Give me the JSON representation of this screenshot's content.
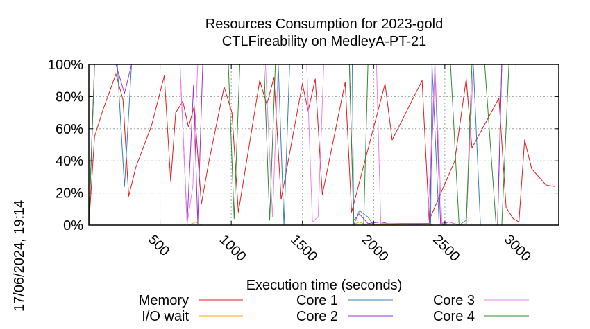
{
  "chart_data": {
    "type": "line",
    "title": "Resources Consumption for 2023-gold",
    "subtitle": "CTLFireability on MedleyA-PT-21",
    "xlabel": "Execution time (seconds)",
    "ylabel": "",
    "timestamp": "17/06/2024, 19:14",
    "xlim": [
      0,
      3300
    ],
    "ylim": [
      0,
      100
    ],
    "x_ticks": [
      500,
      1000,
      1500,
      2000,
      2500,
      3000
    ],
    "y_ticks": [
      {
        "value": 0,
        "label": "0%"
      },
      {
        "value": 20,
        "label": "20%"
      },
      {
        "value": 40,
        "label": "40%"
      },
      {
        "value": 60,
        "label": "60%"
      },
      {
        "value": 80,
        "label": "80%"
      },
      {
        "value": 100,
        "label": "100%"
      }
    ],
    "grid": true,
    "legend_position": "bottom",
    "series": [
      {
        "name": "Memory",
        "color": "#e41a1c",
        "points": [
          [
            0,
            0
          ],
          [
            40,
            55
          ],
          [
            100,
            72
          ],
          [
            190,
            94
          ],
          [
            240,
            78
          ],
          [
            280,
            18
          ],
          [
            330,
            36
          ],
          [
            440,
            62
          ],
          [
            530,
            93
          ],
          [
            575,
            27
          ],
          [
            610,
            70
          ],
          [
            660,
            77
          ],
          [
            700,
            61
          ],
          [
            740,
            74
          ],
          [
            790,
            13
          ],
          [
            840,
            38
          ],
          [
            950,
            86
          ],
          [
            1005,
            70
          ],
          [
            1050,
            8
          ],
          [
            1200,
            90
          ],
          [
            1250,
            75
          ],
          [
            1300,
            92
          ],
          [
            1350,
            16
          ],
          [
            1500,
            88
          ],
          [
            1540,
            71
          ],
          [
            1590,
            91
          ],
          [
            1640,
            19
          ],
          [
            1800,
            89
          ],
          [
            1845,
            8
          ],
          [
            2080,
            88
          ],
          [
            2130,
            53
          ],
          [
            2340,
            90
          ],
          [
            2390,
            3
          ],
          [
            2570,
            40
          ],
          [
            2650,
            91
          ],
          [
            2690,
            48
          ],
          [
            2880,
            79
          ],
          [
            2930,
            11
          ],
          [
            2980,
            4
          ],
          [
            3020,
            2
          ],
          [
            3060,
            53
          ],
          [
            3110,
            35
          ],
          [
            3160,
            30
          ],
          [
            3210,
            25
          ],
          [
            3270,
            24
          ]
        ]
      },
      {
        "name": "I/O wait",
        "color": "#ffa500",
        "points": [
          [
            0,
            0
          ],
          [
            40,
            0
          ],
          [
            700,
            0
          ],
          [
            750,
            2
          ],
          [
            790,
            0
          ],
          [
            1850,
            0
          ],
          [
            1900,
            2
          ],
          [
            1950,
            0
          ],
          [
            2380,
            1
          ],
          [
            2420,
            0
          ],
          [
            3270,
            0
          ]
        ]
      },
      {
        "name": "Core 1",
        "color": "#377eb8",
        "points": [
          [
            0,
            0
          ],
          [
            40,
            100
          ],
          [
            200,
            100
          ],
          [
            250,
            24
          ],
          [
            300,
            100
          ],
          [
            1330,
            100
          ],
          [
            1370,
            0
          ],
          [
            1410,
            100
          ],
          [
            1850,
            100
          ],
          [
            1860,
            0
          ],
          [
            1900,
            9
          ],
          [
            1960,
            5
          ],
          [
            2000,
            0
          ],
          [
            2400,
            0
          ],
          [
            2410,
            100
          ],
          [
            2460,
            0
          ],
          [
            2600,
            0
          ],
          [
            2650,
            3
          ],
          [
            2700,
            100
          ],
          [
            2750,
            0
          ],
          [
            2870,
            0
          ],
          [
            2900,
            100
          ],
          [
            3270,
            100
          ]
        ]
      },
      {
        "name": "Core 2",
        "color": "#9932cc",
        "points": [
          [
            0,
            0
          ],
          [
            40,
            100
          ],
          [
            190,
            100
          ],
          [
            250,
            82
          ],
          [
            300,
            100
          ],
          [
            640,
            100
          ],
          [
            690,
            1
          ],
          [
            735,
            87
          ],
          [
            765,
            1
          ],
          [
            800,
            100
          ],
          [
            1830,
            100
          ],
          [
            1860,
            3
          ],
          [
            1900,
            7
          ],
          [
            1960,
            1
          ],
          [
            2050,
            2
          ],
          [
            2100,
            1
          ],
          [
            2390,
            1
          ],
          [
            2430,
            100
          ],
          [
            2470,
            1
          ],
          [
            2530,
            2
          ],
          [
            2600,
            0
          ],
          [
            2870,
            0
          ],
          [
            2900,
            100
          ],
          [
            3270,
            100
          ]
        ]
      },
      {
        "name": "Core 3",
        "color": "#ee82ee",
        "points": [
          [
            0,
            0
          ],
          [
            40,
            100
          ],
          [
            640,
            100
          ],
          [
            690,
            1
          ],
          [
            730,
            24
          ],
          [
            765,
            100
          ],
          [
            1240,
            100
          ],
          [
            1290,
            5
          ],
          [
            1330,
            100
          ],
          [
            1530,
            100
          ],
          [
            1570,
            2
          ],
          [
            1610,
            5
          ],
          [
            1650,
            100
          ],
          [
            1860,
            100
          ],
          [
            2020,
            100
          ],
          [
            2050,
            1
          ],
          [
            2100,
            1
          ],
          [
            2380,
            0
          ],
          [
            2430,
            100
          ],
          [
            2480,
            0
          ],
          [
            2530,
            2
          ],
          [
            2600,
            0
          ],
          [
            2650,
            1
          ],
          [
            2700,
            100
          ],
          [
            2870,
            100
          ],
          [
            2900,
            100
          ],
          [
            3270,
            100
          ]
        ]
      },
      {
        "name": "Core 4",
        "color": "#2e8b2e",
        "points": [
          [
            0,
            0
          ],
          [
            40,
            100
          ],
          [
            980,
            100
          ],
          [
            1020,
            4
          ],
          [
            1060,
            100
          ],
          [
            1230,
            100
          ],
          [
            1270,
            3
          ],
          [
            1310,
            100
          ],
          [
            1830,
            100
          ],
          [
            1860,
            0
          ],
          [
            1930,
            0
          ],
          [
            1960,
            100
          ],
          [
            2390,
            100
          ],
          [
            2470,
            100
          ],
          [
            2540,
            100
          ],
          [
            2600,
            0
          ],
          [
            2650,
            0
          ],
          [
            2690,
            100
          ],
          [
            2780,
            100
          ],
          [
            2860,
            0
          ],
          [
            2900,
            0
          ],
          [
            2950,
            100
          ],
          [
            3270,
            100
          ]
        ]
      }
    ]
  }
}
